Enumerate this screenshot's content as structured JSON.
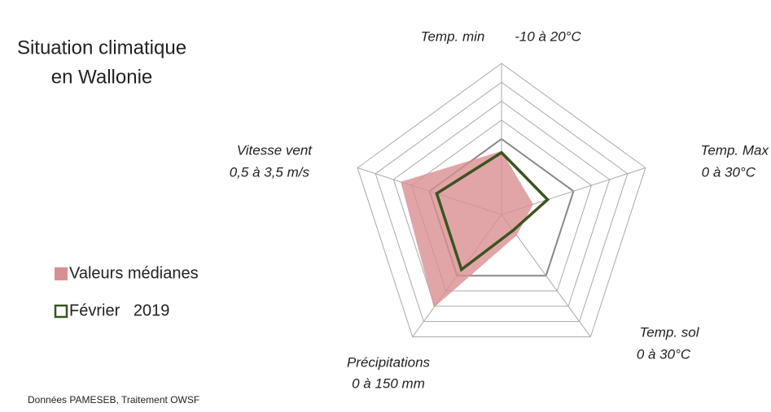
{
  "chart_data": {
    "type": "radar",
    "title": [
      "Situation climatique",
      "en Wallonie"
    ],
    "categories": [
      "Temp. min",
      "Temp. Max",
      "Temp. sol",
      "Précipitations",
      "Vitesse vent"
    ],
    "ranges": [
      "-10 à 20°C",
      "0 à 30°C",
      "0 à 30°C",
      "0 à 150 mm",
      "0,5 à 3,5 m/s"
    ],
    "rlim": [
      0,
      1
    ],
    "rticks": [
      0.5,
      0.625,
      0.75,
      0.875,
      1
    ],
    "series": [
      {
        "name": "Valeurs médianes",
        "color": "#d98f92",
        "values": [
          0.42,
          0.22,
          0.17,
          0.76,
          0.7
        ]
      },
      {
        "name": "Février   2019",
        "color": "#3b5420",
        "values": [
          0.41,
          0.32,
          0.13,
          0.45,
          0.45
        ]
      }
    ],
    "source": "Données PAMESEB, Traitement OWSF"
  }
}
